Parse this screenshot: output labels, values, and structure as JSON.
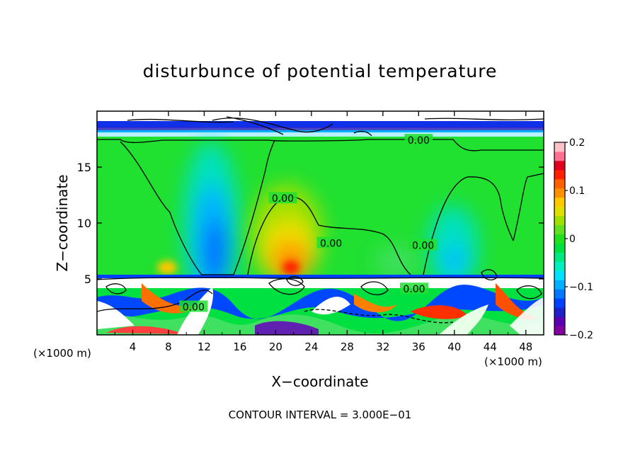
{
  "chart_data": {
    "type": "heatmap",
    "title": "disturbunce of potential temperature",
    "xlabel": "X−coordinate",
    "ylabel": "Z−coordinate",
    "x_unit_left": "(×1000 m)",
    "x_unit_right": "(×1000 m)",
    "footer": "CONTOUR INTERVAL = 3.000E−01",
    "xlim": [
      0,
      50
    ],
    "ylim": [
      0,
      20
    ],
    "x_ticks": [
      4,
      8,
      12,
      16,
      20,
      24,
      28,
      32,
      36,
      40,
      44,
      48
    ],
    "y_ticks": [
      5,
      10,
      15
    ],
    "colorbar": {
      "range": [
        -0.2,
        0.2
      ],
      "tick_values": [
        0.2,
        0.1,
        0,
        -0.1,
        -0.2
      ],
      "tick_labels": [
        "0.2",
        "0.1",
        "0",
        "−0.1",
        "−0.2"
      ],
      "colors": [
        "#8000a0",
        "#5a00b0",
        "#2020c8",
        "#0040ff",
        "#0078ff",
        "#00b0ff",
        "#00e0ff",
        "#00f0c0",
        "#00e880",
        "#00e040",
        "#20e020",
        "#60e020",
        "#a0e000",
        "#e0e000",
        "#ffc800",
        "#ff9000",
        "#ff6000",
        "#ff2000",
        "#e00020",
        "#ff7090",
        "#ffc0c8"
      ]
    },
    "contour_labels": [
      {
        "x": 36,
        "y": 17.4,
        "text": "0.00"
      },
      {
        "x": 20.8,
        "y": 12.2,
        "text": "0.00"
      },
      {
        "x": 26.2,
        "y": 8.2,
        "text": "0.00"
      },
      {
        "x": 36.5,
        "y": 8.0,
        "text": "0.00"
      },
      {
        "x": 35.5,
        "y": 4.1,
        "text": "0.00"
      },
      {
        "x": 10.8,
        "y": 2.5,
        "text": "0.00"
      }
    ],
    "anomalies": [
      {
        "name": "cold-column-1",
        "x": 13.5,
        "z": 9.5,
        "value": -0.12
      },
      {
        "name": "warm-blob-1",
        "x": 21.2,
        "z": 7.0,
        "value": 0.15
      },
      {
        "name": "cold-column-2",
        "x": 40.0,
        "z": 7.0,
        "value": -0.06
      },
      {
        "name": "warm-spot-1",
        "x": 7.5,
        "z": 5.8,
        "value": 0.08
      },
      {
        "name": "cold-bulge-2",
        "x": 33.5,
        "z": 5.8,
        "value": -0.04
      }
    ]
  }
}
